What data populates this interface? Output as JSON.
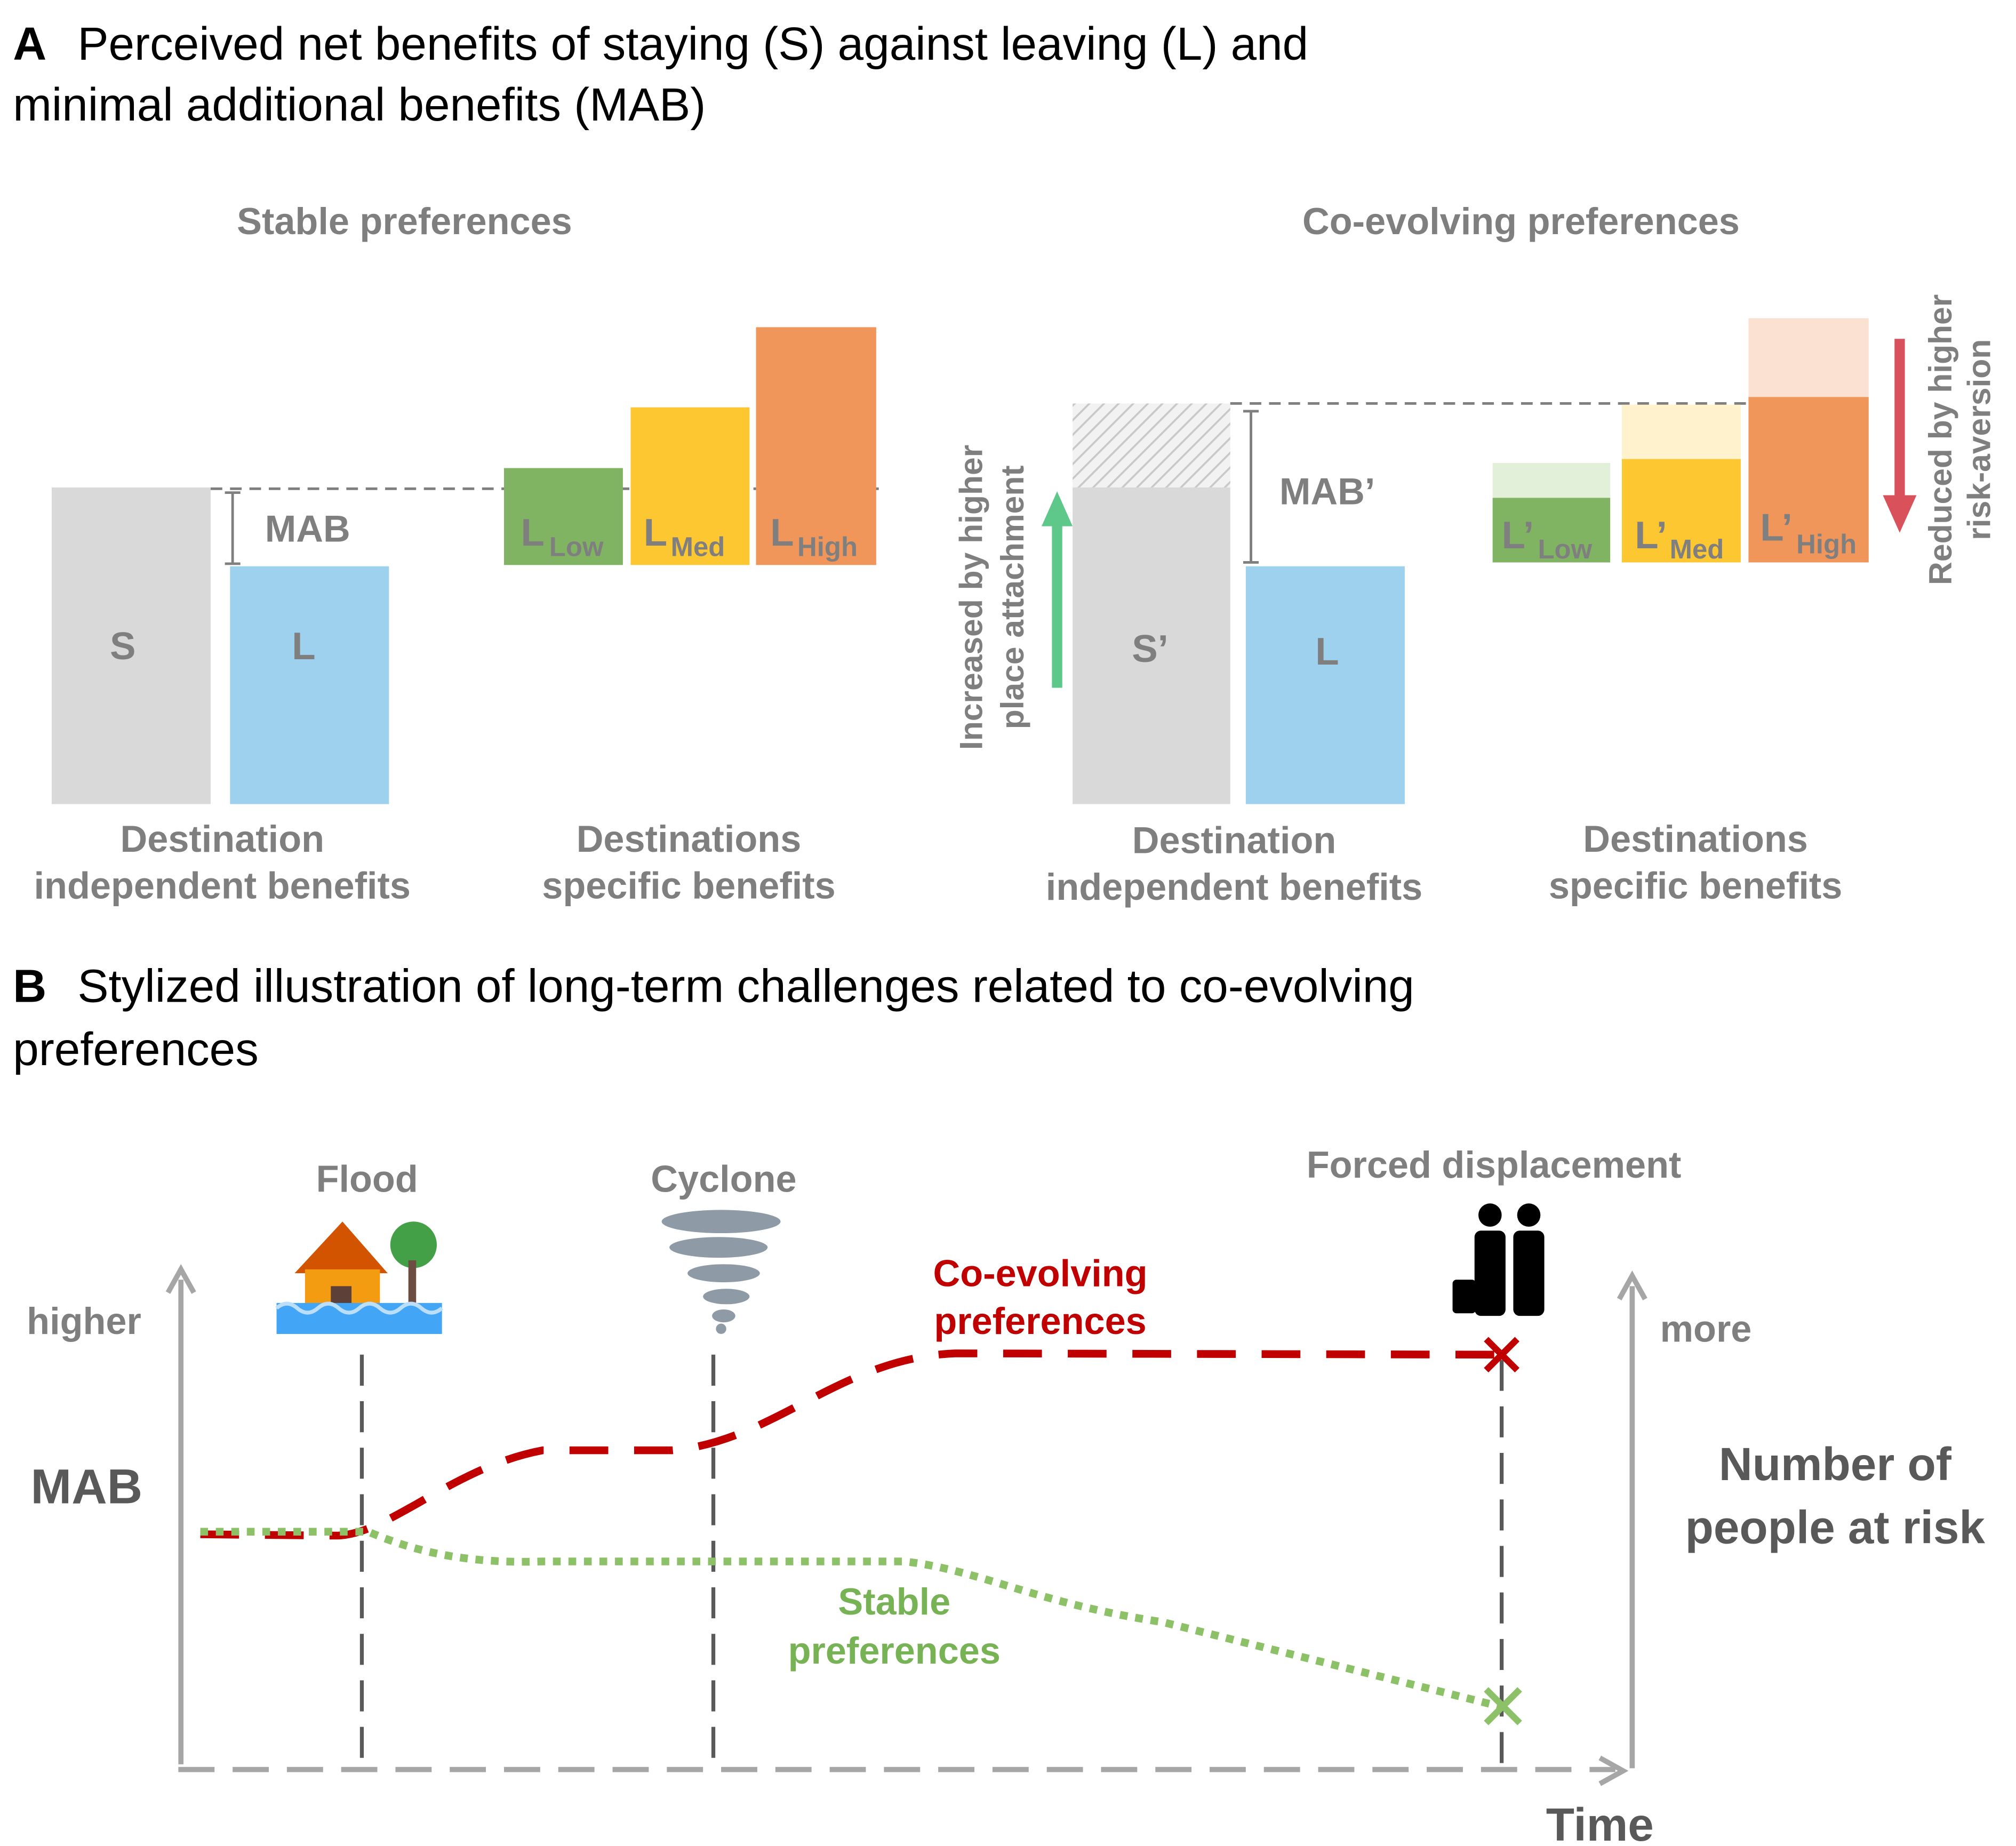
{
  "panel_a": {
    "label": "A",
    "title_line1": "Perceived net benefits of staying (S) against leaving (L) and",
    "title_line2": "minimal additional benefits (MAB)",
    "stable": {
      "title": "Stable preferences",
      "s_bar": "S",
      "l_bar": "L",
      "mab": "MAB",
      "low": {
        "main": "L",
        "sub": "Low"
      },
      "med": {
        "main": "L",
        "sub": "Med"
      },
      "high": {
        "main": "L",
        "sub": "High"
      },
      "group1": [
        "Destination",
        "independent benefits"
      ],
      "group2": [
        "Destinations",
        "specific benefits"
      ]
    },
    "coevolving": {
      "title": "Co-evolving preferences",
      "s_bar": "S’",
      "l_bar": "L",
      "mab": "MAB’",
      "low": {
        "main": "L’",
        "sub": "Low"
      },
      "med": {
        "main": "L’",
        "sub": "Med"
      },
      "high": {
        "main": "L’",
        "sub": "High"
      },
      "arrow_up": [
        "Increased by higher",
        "place attachment"
      ],
      "arrow_down": [
        "Reduced by higher",
        "risk-aversion"
      ],
      "group1": [
        "Destination",
        "independent benefits"
      ],
      "group2": [
        "Destinations",
        "specific benefits"
      ]
    }
  },
  "panel_b": {
    "label": "B",
    "title_line1": "Stylized illustration of long-term challenges related to co-evolving",
    "title_line2": "preferences",
    "events": [
      "Flood",
      "Cyclone",
      "Forced displacement"
    ],
    "y_top": "higher",
    "y_label": "MAB",
    "right_top": "more",
    "right_label": [
      "Number of",
      "people at risk"
    ],
    "x_label": "Time",
    "coevolving_label": [
      "Co-evolving",
      "preferences"
    ],
    "stable_label": [
      "Stable",
      "preferences"
    ]
  }
}
